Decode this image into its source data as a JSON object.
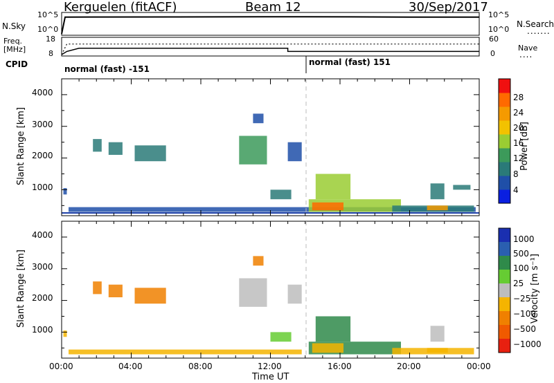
{
  "header": {
    "station": "Kerguelen (fitACF)",
    "beam": "Beam 12",
    "date": "30/Sep/2017"
  },
  "top_panels": {
    "nsky_label": "N.Sky",
    "nsky_ticks": [
      "10^5",
      "10^0"
    ],
    "nsearch_label": "N.Search",
    "nsearch_ticks": [
      "10^5",
      "10^0"
    ],
    "freq_label_line1": "Freq.",
    "freq_label_line2": "[MHz]",
    "freq_ticks": [
      "18",
      "8"
    ],
    "nave_label": "Nave",
    "nave_ticks": [
      "60",
      "0"
    ],
    "cpid_label": "CPID",
    "cpid_segments": [
      {
        "label": "normal (fast) -151",
        "start_hour": 0
      },
      {
        "label": "normal (fast) 151",
        "start_hour": 14
      }
    ]
  },
  "x_axis": {
    "title": "Time UT",
    "ticks": [
      "00:00",
      "04:00",
      "08:00",
      "12:00",
      "16:00",
      "20:00",
      "00:00"
    ]
  },
  "power_panel": {
    "ylabel": "Slant Range [km]",
    "yticks": [
      "1000",
      "2000",
      "3000",
      "4000"
    ],
    "colorbar_label": "Power [dB]",
    "colorbar_ticks": [
      "4",
      "8",
      "12",
      "16",
      "20",
      "24",
      "28"
    ]
  },
  "velocity_panel": {
    "ylabel": "Slant Range [km]",
    "yticks": [
      "1000",
      "2000",
      "3000",
      "4000"
    ],
    "colorbar_label": "Velocity [m s⁻¹]",
    "colorbar_ticks": [
      "1000",
      "500",
      "100",
      "25",
      "−25",
      "−100",
      "−500",
      "−1000"
    ]
  },
  "chart_data": [
    {
      "type": "line",
      "name": "N.Sky / N.Search",
      "ylim_log": [
        0,
        5
      ],
      "x_hours": [
        0,
        0.2,
        14,
        20,
        24
      ],
      "nsky_log": [
        0,
        4.5,
        4.6,
        4.5,
        4.5
      ],
      "nsearch_log": [
        null,
        null,
        null,
        null,
        null
      ]
    },
    {
      "type": "line",
      "name": "Freq / Nave",
      "freq_ylim": [
        8,
        18
      ],
      "nave_ylim": [
        0,
        60
      ],
      "freq": [
        {
          "x": 0,
          "y": 8
        },
        {
          "x": 0.3,
          "y": 10
        },
        {
          "x": 1.0,
          "y": 12
        },
        {
          "x": 13.0,
          "y": 12
        },
        {
          "x": 13.0,
          "y": 10
        },
        {
          "x": 24,
          "y": 10
        }
      ],
      "nave": [
        {
          "x": 0,
          "y": 0
        },
        {
          "x": 0.3,
          "y": 40
        },
        {
          "x": 24,
          "y": 40
        }
      ]
    },
    {
      "type": "heatmap",
      "name": "Power",
      "xlim_hours": [
        0,
        24
      ],
      "ylim_km": [
        180,
        4500
      ],
      "clim_db": [
        0,
        30
      ],
      "cells": [
        {
          "x": [
            0.1,
            0.3
          ],
          "y": [
            850,
            1050
          ],
          "v": 6
        },
        {
          "x": [
            0.4,
            23.8
          ],
          "y": [
            300,
            450
          ],
          "v": 6
        },
        {
          "x": [
            1.8,
            2.3
          ],
          "y": [
            2200,
            2600
          ],
          "v": 10
        },
        {
          "x": [
            2.7,
            3.5
          ],
          "y": [
            2100,
            2500
          ],
          "v": 9
        },
        {
          "x": [
            4.2,
            6.0
          ],
          "y": [
            1900,
            2400
          ],
          "v": 10
        },
        {
          "x": [
            10.2,
            11.8
          ],
          "y": [
            1800,
            2700
          ],
          "v": 11
        },
        {
          "x": [
            11.0,
            11.6
          ],
          "y": [
            3100,
            3400
          ],
          "v": 5
        },
        {
          "x": [
            12.0,
            13.2
          ],
          "y": [
            700,
            1000
          ],
          "v": 9
        },
        {
          "x": [
            13.0,
            13.8
          ],
          "y": [
            1900,
            2500
          ],
          "v": 6
        },
        {
          "x": [
            14.2,
            19.5
          ],
          "y": [
            300,
            700
          ],
          "v": 16
        },
        {
          "x": [
            14.4,
            16.2
          ],
          "y": [
            350,
            600
          ],
          "v": 27
        },
        {
          "x": [
            14.6,
            16.6
          ],
          "y": [
            700,
            1500
          ],
          "v": 14
        },
        {
          "x": [
            19.0,
            23.7
          ],
          "y": [
            300,
            500
          ],
          "v": 9
        },
        {
          "x": [
            21.0,
            22.2
          ],
          "y": [
            350,
            500
          ],
          "v": 22
        },
        {
          "x": [
            21.2,
            22.0
          ],
          "y": [
            700,
            1200
          ],
          "v": 10
        },
        {
          "x": [
            22.5,
            23.5
          ],
          "y": [
            1000,
            1150
          ],
          "v": 7
        }
      ]
    },
    {
      "type": "heatmap",
      "name": "Velocity",
      "xlim_hours": [
        0,
        24
      ],
      "ylim_km": [
        180,
        4500
      ],
      "clim_ms": [
        -1000,
        1000
      ],
      "cells": [
        {
          "x": [
            0.1,
            0.3
          ],
          "y": [
            850,
            1050
          ],
          "v": -100
        },
        {
          "x": [
            0.4,
            13.8
          ],
          "y": [
            300,
            450
          ],
          "v": -80
        },
        {
          "x": [
            1.8,
            2.3
          ],
          "y": [
            2200,
            2600
          ],
          "v": -200
        },
        {
          "x": [
            2.7,
            3.5
          ],
          "y": [
            2100,
            2500
          ],
          "v": -300
        },
        {
          "x": [
            4.2,
            6.0
          ],
          "y": [
            1900,
            2400
          ],
          "v": -500
        },
        {
          "x": [
            10.2,
            11.8
          ],
          "y": [
            1800,
            2700
          ],
          "v": 0
        },
        {
          "x": [
            11.0,
            11.6
          ],
          "y": [
            3100,
            3400
          ],
          "v": -150
        },
        {
          "x": [
            12.0,
            13.2
          ],
          "y": [
            700,
            1000
          ],
          "v": 60
        },
        {
          "x": [
            13.0,
            13.8
          ],
          "y": [
            1900,
            2500
          ],
          "v": 0
        },
        {
          "x": [
            14.2,
            19.5
          ],
          "y": [
            300,
            700
          ],
          "v": 120
        },
        {
          "x": [
            14.4,
            16.2
          ],
          "y": [
            350,
            650
          ],
          "v": -100
        },
        {
          "x": [
            14.6,
            16.6
          ],
          "y": [
            700,
            1500
          ],
          "v": 200
        },
        {
          "x": [
            19.0,
            23.7
          ],
          "y": [
            300,
            500
          ],
          "v": -30
        },
        {
          "x": [
            21.0,
            22.2
          ],
          "y": [
            350,
            500
          ],
          "v": -80
        },
        {
          "x": [
            21.2,
            22.0
          ],
          "y": [
            700,
            1200
          ],
          "v": 0
        }
      ]
    }
  ]
}
